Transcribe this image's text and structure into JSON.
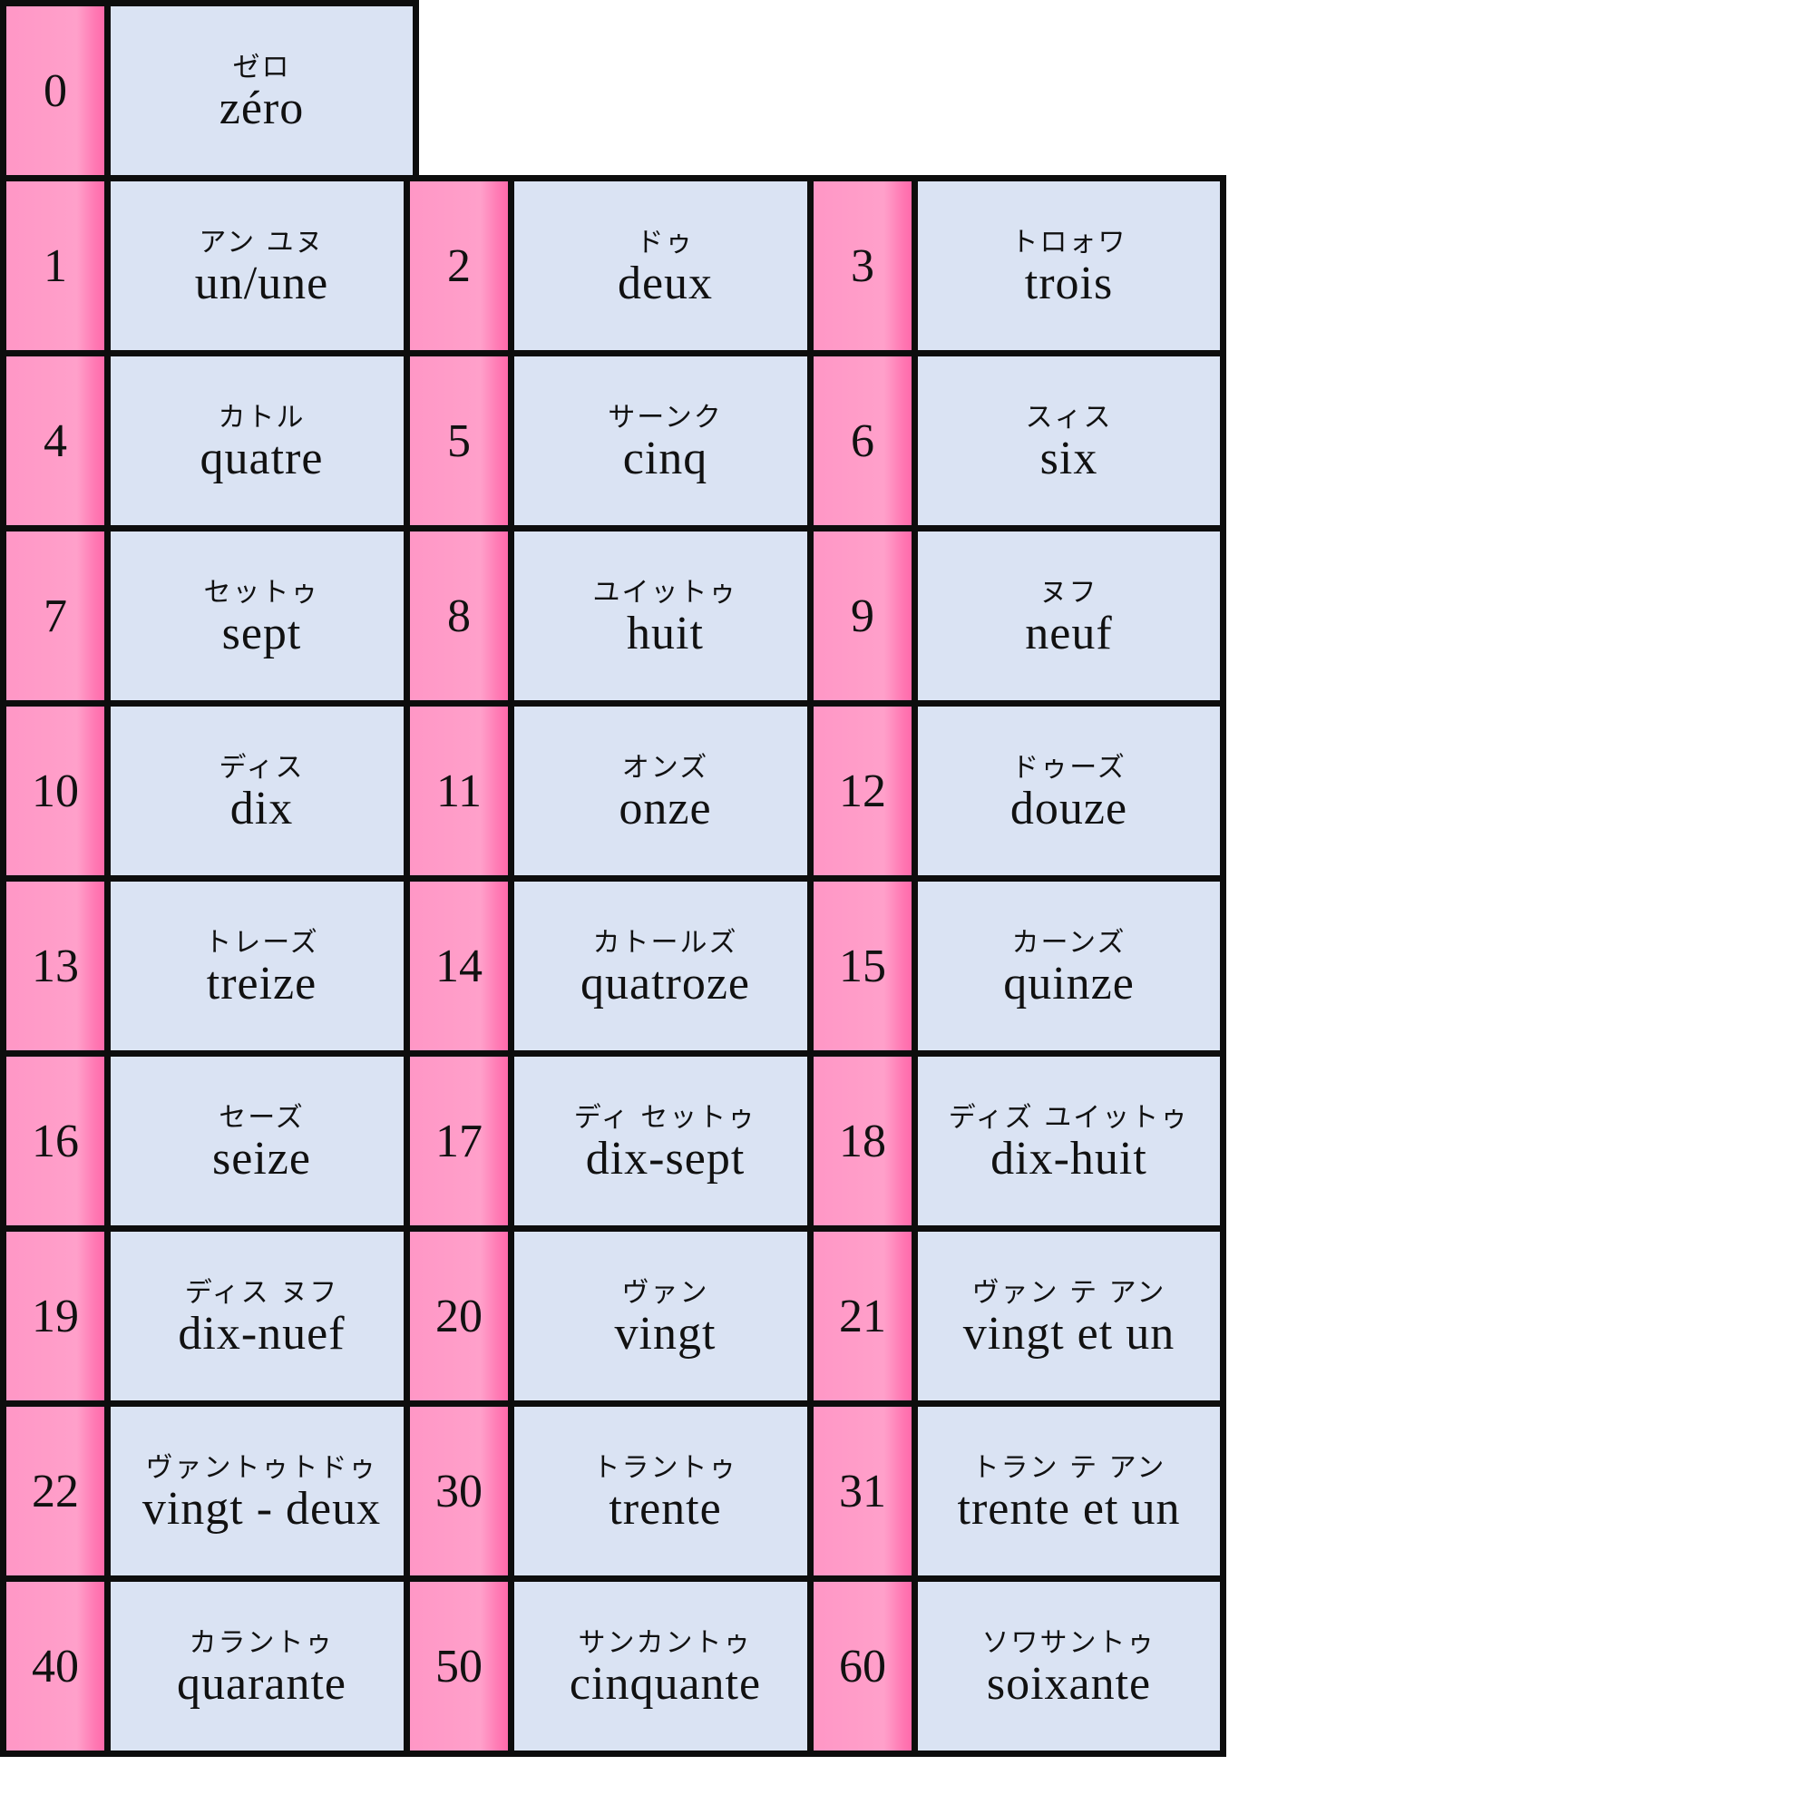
{
  "colors": {
    "number_cell": "#ff97c6",
    "word_cell": "#dae3f3",
    "border": "#0d0d0d"
  },
  "entries": [
    {
      "number": "0",
      "kana": "ゼロ",
      "word": "zéro"
    },
    {
      "number": "1",
      "kana": "アン ユヌ",
      "word": "un/une"
    },
    {
      "number": "2",
      "kana": "ドゥ",
      "word": "deux"
    },
    {
      "number": "3",
      "kana": "トロォワ",
      "word": "trois"
    },
    {
      "number": "4",
      "kana": "カトル",
      "word": "quatre"
    },
    {
      "number": "5",
      "kana": "サーンク",
      "word": "cinq"
    },
    {
      "number": "6",
      "kana": "スィス",
      "word": "six"
    },
    {
      "number": "7",
      "kana": "セットゥ",
      "word": "sept"
    },
    {
      "number": "8",
      "kana": "ユイットゥ",
      "word": "huit"
    },
    {
      "number": "9",
      "kana": "ヌフ",
      "word": "neuf"
    },
    {
      "number": "10",
      "kana": "ディス",
      "word": "dix"
    },
    {
      "number": "11",
      "kana": "オンズ",
      "word": "onze"
    },
    {
      "number": "12",
      "kana": "ドゥーズ",
      "word": "douze"
    },
    {
      "number": "13",
      "kana": "トレーズ",
      "word": "treize"
    },
    {
      "number": "14",
      "kana": "カトールズ",
      "word": "quatroze"
    },
    {
      "number": "15",
      "kana": "カーンズ",
      "word": "quinze"
    },
    {
      "number": "16",
      "kana": "セーズ",
      "word": "seize"
    },
    {
      "number": "17",
      "kana": "ディ セットゥ",
      "word": "dix-sept"
    },
    {
      "number": "18",
      "kana": "ディズ ユイットゥ",
      "word": "dix-huit"
    },
    {
      "number": "19",
      "kana": "ディス ヌフ",
      "word": "dix-nuef"
    },
    {
      "number": "20",
      "kana": "ヴァン",
      "word": "vingt"
    },
    {
      "number": "21",
      "kana": "ヴァン テ アン",
      "word": "vingt et un"
    },
    {
      "number": "22",
      "kana": "ヴァントゥトドゥ",
      "word": "vingt - deux"
    },
    {
      "number": "30",
      "kana": "トラントゥ",
      "word": "trente"
    },
    {
      "number": "31",
      "kana": "トラン テ アン",
      "word": "trente et un"
    },
    {
      "number": "40",
      "kana": "カラントゥ",
      "word": "quarante"
    },
    {
      "number": "50",
      "kana": "サンカントゥ",
      "word": "cinquante"
    },
    {
      "number": "60",
      "kana": "ソワサントゥ",
      "word": "soixante"
    }
  ]
}
